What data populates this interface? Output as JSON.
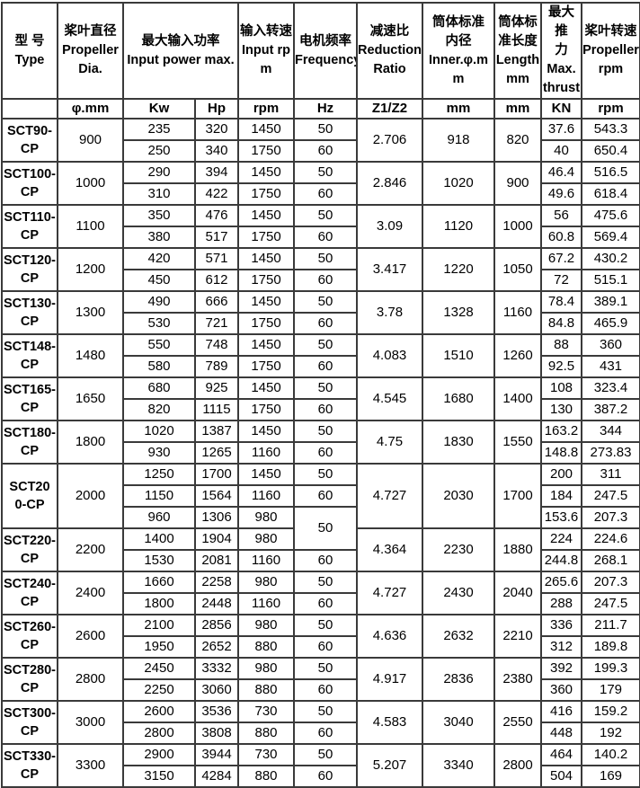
{
  "table": {
    "header": {
      "type": "型 号\nType",
      "propeller_dia": "桨叶直径\nPropeller\nDia.",
      "input_power": "最大输入功率\nInput power max.",
      "input_rpm": "输入转速\nInput rp\nm",
      "frequency": "电机频率\nFrequency",
      "reduction_ratio": "减速比\nReduction\nRatio",
      "inner_dia": "筒体标准\n内径\nInner.φ.m\nm",
      "length": "筒体标\n准长度\nLength\nmm",
      "max_thrust": "最大推\n力\nMax.\nthrust",
      "propeller_rpm": "桨叶转速\nPropeller\nrpm"
    },
    "units": {
      "dia": "φ.mm",
      "kw": "Kw",
      "hp": "Hp",
      "rpm": "rpm",
      "hz": "Hz",
      "ratio": "Z1/Z2",
      "inner": "mm",
      "length": "mm",
      "thrust": "KN",
      "prop_rpm": "rpm"
    },
    "colors": {
      "border": "#3a3a3a",
      "text": "#000000",
      "background": "#ffffff"
    },
    "groups": [
      {
        "model": "SCT90-\nCP",
        "dia": "900",
        "ratio": "2.706",
        "inner": "918",
        "length": "820",
        "rows": [
          {
            "kw": "235",
            "hp": "320",
            "rpm": "1450",
            "hz": "50",
            "thrust": "37.6",
            "prop_rpm": "543.3"
          },
          {
            "kw": "250",
            "hp": "340",
            "rpm": "1750",
            "hz": "60",
            "thrust": "40",
            "prop_rpm": "650.4"
          }
        ]
      },
      {
        "model": "SCT100-\nCP",
        "dia": "1000",
        "ratio": "2.846",
        "inner": "1020",
        "length": "900",
        "rows": [
          {
            "kw": "290",
            "hp": "394",
            "rpm": "1450",
            "hz": "50",
            "thrust": "46.4",
            "prop_rpm": "516.5"
          },
          {
            "kw": "310",
            "hp": "422",
            "rpm": "1750",
            "hz": "60",
            "thrust": "49.6",
            "prop_rpm": "618.4"
          }
        ]
      },
      {
        "model": "SCT110-\nCP",
        "dia": "1100",
        "ratio": "3.09",
        "inner": "1120",
        "length": "1000",
        "rows": [
          {
            "kw": "350",
            "hp": "476",
            "rpm": "1450",
            "hz": "50",
            "thrust": "56",
            "prop_rpm": "475.6"
          },
          {
            "kw": "380",
            "hp": "517",
            "rpm": "1750",
            "hz": "60",
            "thrust": "60.8",
            "prop_rpm": "569.4"
          }
        ]
      },
      {
        "model": "SCT120-\nCP",
        "dia": "1200",
        "ratio": "3.417",
        "inner": "1220",
        "length": "1050",
        "rows": [
          {
            "kw": "420",
            "hp": "571",
            "rpm": "1450",
            "hz": "50",
            "thrust": "67.2",
            "prop_rpm": "430.2"
          },
          {
            "kw": "450",
            "hp": "612",
            "rpm": "1750",
            "hz": "60",
            "thrust": "72",
            "prop_rpm": "515.1"
          }
        ]
      },
      {
        "model": "SCT130-\nCP",
        "dia": "1300",
        "ratio": "3.78",
        "inner": "1328",
        "length": "1160",
        "rows": [
          {
            "kw": "490",
            "hp": "666",
            "rpm": "1450",
            "hz": "50",
            "thrust": "78.4",
            "prop_rpm": "389.1"
          },
          {
            "kw": "530",
            "hp": "721",
            "rpm": "1750",
            "hz": "60",
            "thrust": "84.8",
            "prop_rpm": "465.9"
          }
        ]
      },
      {
        "model": "SCT148-\nCP",
        "dia": "1480",
        "ratio": "4.083",
        "inner": "1510",
        "length": "1260",
        "rows": [
          {
            "kw": "550",
            "hp": "748",
            "rpm": "1450",
            "hz": "50",
            "thrust": "88",
            "prop_rpm": "360"
          },
          {
            "kw": "580",
            "hp": "789",
            "rpm": "1750",
            "hz": "60",
            "thrust": "92.5",
            "prop_rpm": "431"
          }
        ]
      },
      {
        "model": "SCT165-\nCP",
        "dia": "1650",
        "ratio": "4.545",
        "inner": "1680",
        "length": "1400",
        "rows": [
          {
            "kw": "680",
            "hp": "925",
            "rpm": "1450",
            "hz": "50",
            "thrust": "108",
            "prop_rpm": "323.4"
          },
          {
            "kw": "820",
            "hp": "1115",
            "rpm": "1750",
            "hz": "60",
            "thrust": "130",
            "prop_rpm": "387.2"
          }
        ]
      },
      {
        "model": "SCT180-\nCP",
        "dia": "1800",
        "ratio": "4.75",
        "inner": "1830",
        "length": "1550",
        "rows": [
          {
            "kw": "1020",
            "hp": "1387",
            "rpm": "1450",
            "hz": "50",
            "thrust": "163.2",
            "prop_rpm": "344"
          },
          {
            "kw": "930",
            "hp": "1265",
            "rpm": "1160",
            "hz": "60",
            "thrust": "148.8",
            "prop_rpm": "273.83"
          }
        ]
      },
      {
        "model": "SCT20\n0-CP",
        "dia": "2000",
        "ratio": "4.727",
        "inner": "2030",
        "length": "1700",
        "rows": [
          {
            "kw": "1250",
            "hp": "1700",
            "rpm": "1450",
            "hz": "50",
            "thrust": "200",
            "prop_rpm": "311"
          },
          {
            "kw": "1150",
            "hp": "1564",
            "rpm": "1160",
            "hz": "60",
            "thrust": "184",
            "prop_rpm": "247.5"
          },
          {
            "kw": "960",
            "hp": "1306",
            "rpm": "980",
            "hz": "50",
            "hz_rowspan": 2,
            "thrust": "153.6",
            "prop_rpm": "207.3"
          }
        ]
      },
      {
        "model": "SCT220-\nCP",
        "dia": "2200",
        "ratio": "4.364",
        "inner": "2230",
        "length": "1880",
        "rows": [
          {
            "kw": "1400",
            "hp": "1904",
            "rpm": "980",
            "hz": null,
            "thrust": "224",
            "prop_rpm": "224.6"
          },
          {
            "kw": "1530",
            "hp": "2081",
            "rpm": "1160",
            "hz": "60",
            "thrust": "244.8",
            "prop_rpm": "268.1"
          }
        ]
      },
      {
        "model": "SCT240-\nCP",
        "dia": "2400",
        "ratio": "4.727",
        "inner": "2430",
        "length": "2040",
        "rows": [
          {
            "kw": "1660",
            "hp": "2258",
            "rpm": "980",
            "hz": "50",
            "thrust": "265.6",
            "prop_rpm": "207.3"
          },
          {
            "kw": "1800",
            "hp": "2448",
            "rpm": "1160",
            "hz": "60",
            "thrust": "288",
            "prop_rpm": "247.5"
          }
        ]
      },
      {
        "model": "SCT260-\nCP",
        "dia": "2600",
        "ratio": "4.636",
        "inner": "2632",
        "length": "2210",
        "rows": [
          {
            "kw": "2100",
            "hp": "2856",
            "rpm": "980",
            "hz": "50",
            "thrust": "336",
            "prop_rpm": "211.7"
          },
          {
            "kw": "1950",
            "hp": "2652",
            "rpm": "880",
            "hz": "60",
            "thrust": "312",
            "prop_rpm": "189.8"
          }
        ]
      },
      {
        "model": "SCT280-\nCP",
        "dia": "2800",
        "ratio": "4.917",
        "inner": "2836",
        "length": "2380",
        "rows": [
          {
            "kw": "2450",
            "hp": "3332",
            "rpm": "980",
            "hz": "50",
            "thrust": "392",
            "prop_rpm": "199.3"
          },
          {
            "kw": "2250",
            "hp": "3060",
            "rpm": "880",
            "hz": "60",
            "thrust": "360",
            "prop_rpm": "179"
          }
        ]
      },
      {
        "model": "SCT300-\nCP",
        "dia": "3000",
        "ratio": "4.583",
        "inner": "3040",
        "length": "2550",
        "rows": [
          {
            "kw": "2600",
            "hp": "3536",
            "rpm": "730",
            "hz": "50",
            "thrust": "416",
            "prop_rpm": "159.2"
          },
          {
            "kw": "2800",
            "hp": "3808",
            "rpm": "880",
            "hz": "60",
            "thrust": "448",
            "prop_rpm": "192"
          }
        ]
      },
      {
        "model": "SCT330-\nCP",
        "dia": "3300",
        "ratio": "5.207",
        "inner": "3340",
        "length": "2800",
        "rows": [
          {
            "kw": "2900",
            "hp": "3944",
            "rpm": "730",
            "hz": "50",
            "thrust": "464",
            "prop_rpm": "140.2"
          },
          {
            "kw": "3150",
            "hp": "4284",
            "rpm": "880",
            "hz": "60",
            "thrust": "504",
            "prop_rpm": "169"
          }
        ]
      }
    ]
  }
}
